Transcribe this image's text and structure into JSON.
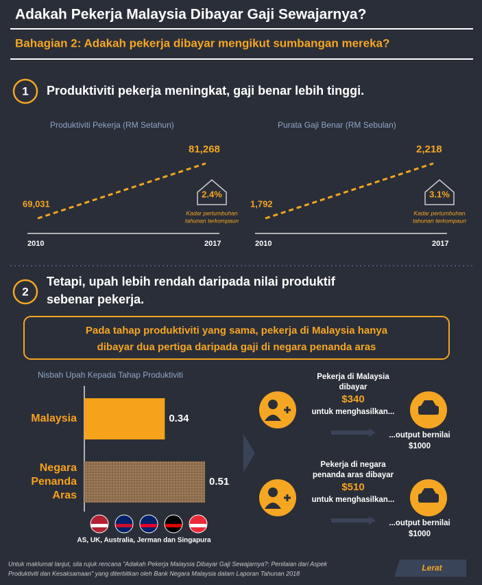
{
  "header": {
    "title": "Adakah Pekerja Malaysia Dibayar Gaji Sewajarnya?",
    "subtitle": "Bahagian 2: Adakah pekerja dibayar mengikut sumbangan mereka?"
  },
  "sections": [
    {
      "number": "1",
      "heading": [
        "Produktiviti pekerja meningkat, gaji benar lebih tinggi."
      ]
    },
    {
      "number": "2",
      "heading": [
        "Tetapi, upah lebih rendah daripada nilai produktif",
        "sebenar pekerja."
      ]
    }
  ],
  "callout": [
    "Pada tahap produktiviti yang sama, pekerja di Malaysia hanya",
    "dibayar dua pertiga daripada gaji di negara penanda aras"
  ],
  "chart_data": [
    {
      "type": "line",
      "title": "Produktiviti Pekerja (RM Setahun)",
      "categories": [
        "2010",
        "2017"
      ],
      "values": [
        69031,
        81268
      ],
      "value_labels": [
        "69,031",
        "81,268"
      ],
      "color": "#f5a623",
      "annotation": "2.4%",
      "annotation_note": [
        "Kadar pertumbuhan",
        "tahunan terkompaun"
      ]
    },
    {
      "type": "line",
      "title": "Purata Gaji Benar (RM Sebulan)",
      "categories": [
        "2010",
        "2017"
      ],
      "values": [
        1792,
        2218
      ],
      "value_labels": [
        "1,792",
        "2,218"
      ],
      "color": "#f5a623",
      "annotation": "3.1%",
      "annotation_note": [
        "Kadar pertumbuhan",
        "tahunan terkompaun"
      ]
    },
    {
      "type": "bar",
      "orientation": "horizontal",
      "title": "Nisbah Upah Kepada Tahap Produktiviti",
      "categories": [
        "Malaysia",
        "Negara Penanda Aras"
      ],
      "values": [
        0.34,
        0.51
      ],
      "colors": [
        "#f7a21b",
        "#8a6a4a"
      ]
    }
  ],
  "comparison": [
    {
      "lines": [
        "Pekerja di Malaysia",
        "dibayar"
      ],
      "amount": "$340",
      "verb": "untuk menghasilkan...",
      "output": [
        "...output bernilai",
        "$1000"
      ]
    },
    {
      "lines": [
        "Pekerja di negara",
        "penanda aras dibayar"
      ],
      "amount": "$510",
      "verb": "untuk menghasilkan...",
      "output": [
        "...output bernilai",
        "$1000"
      ]
    }
  ],
  "flags_caption": "AS, UK, Australia, Jerman dan Singapura",
  "footer": {
    "note": [
      "Untuk maklumat lanjut, sila rujuk rencana \"Adakah Pekerja Malaysia Dibayar Gaji Sewajarnya?: Penilaian dari Aspek",
      "Produktiviti dan Kesaksamaan\" yang diterbitkan oleh Bank Negara Malaysia dalam Laporan Tahunan 2018"
    ],
    "button": "Lerat"
  }
}
